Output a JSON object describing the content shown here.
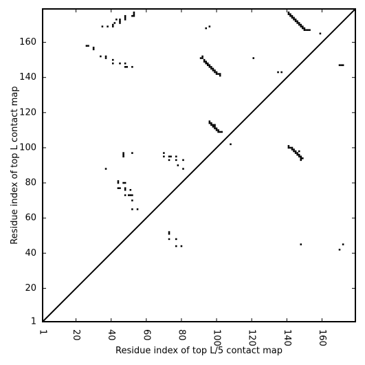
{
  "chart_data": {
    "type": "heatmap",
    "title": "",
    "xlabel": "Residue index of top L/5 contact map",
    "ylabel": "Residue index of top L contact map",
    "xlim": [
      1,
      179
    ],
    "ylim": [
      1,
      179
    ],
    "x_ticks": [
      1,
      20,
      40,
      60,
      80,
      100,
      120,
      140,
      160
    ],
    "y_ticks": [
      1,
      20,
      40,
      60,
      80,
      100,
      120,
      140,
      160
    ],
    "x_tick_labels": [
      "1",
      "20",
      "40",
      "60",
      "80",
      "100",
      "120",
      "140",
      "160"
    ],
    "y_tick_labels": [
      "1",
      "20",
      "40",
      "60",
      "80",
      "100",
      "120",
      "140",
      "160"
    ],
    "x_tick_rotation_deg": 90,
    "grid": false,
    "legend": "none",
    "diagonal_line": true,
    "cell_color": "#000000",
    "background_color": "#ffffff",
    "upper_triangle_contacts": [
      [
        26,
        158
      ],
      [
        27,
        158
      ],
      [
        30,
        157
      ],
      [
        30,
        156
      ],
      [
        34,
        152
      ],
      [
        35,
        169
      ],
      [
        37,
        152
      ],
      [
        37,
        151
      ],
      [
        38,
        169
      ],
      [
        41,
        170
      ],
      [
        41,
        169
      ],
      [
        41,
        150
      ],
      [
        41,
        148
      ],
      [
        42,
        171
      ],
      [
        43,
        173
      ],
      [
        45,
        173
      ],
      [
        45,
        172
      ],
      [
        45,
        171
      ],
      [
        45,
        148
      ],
      [
        48,
        175
      ],
      [
        48,
        174
      ],
      [
        48,
        173
      ],
      [
        48,
        148
      ],
      [
        48,
        146
      ],
      [
        49,
        146
      ],
      [
        52,
        175
      ],
      [
        52,
        146
      ],
      [
        53,
        177
      ],
      [
        53,
        176
      ],
      [
        53,
        175
      ],
      [
        94,
        168
      ],
      [
        96,
        169
      ],
      [
        121,
        151
      ],
      [
        135,
        143
      ],
      [
        137,
        143
      ],
      [
        141,
        177
      ],
      [
        141,
        176
      ],
      [
        142,
        176
      ],
      [
        142,
        175
      ],
      [
        143,
        175
      ],
      [
        143,
        174
      ],
      [
        144,
        174
      ],
      [
        144,
        173
      ],
      [
        145,
        173
      ],
      [
        145,
        172
      ],
      [
        146,
        172
      ],
      [
        146,
        171
      ],
      [
        147,
        171
      ],
      [
        147,
        170
      ],
      [
        148,
        170
      ],
      [
        148,
        169
      ],
      [
        149,
        169
      ],
      [
        149,
        168
      ],
      [
        150,
        168
      ],
      [
        150,
        167
      ],
      [
        151,
        167
      ],
      [
        152,
        167
      ],
      [
        153,
        167
      ],
      [
        159,
        165
      ]
    ],
    "lower_triangle_contacts": [
      [
        37,
        88
      ],
      [
        44,
        81
      ],
      [
        44,
        80
      ],
      [
        44,
        77
      ],
      [
        45,
        77
      ],
      [
        47,
        97
      ],
      [
        47,
        96
      ],
      [
        47,
        95
      ],
      [
        47,
        80
      ],
      [
        48,
        80
      ],
      [
        48,
        77
      ],
      [
        48,
        76
      ],
      [
        48,
        73
      ],
      [
        50,
        73
      ],
      [
        51,
        76
      ],
      [
        51,
        73
      ],
      [
        52,
        73
      ],
      [
        52,
        97
      ],
      [
        52,
        70
      ],
      [
        52,
        65
      ],
      [
        55,
        65
      ],
      [
        70,
        97
      ],
      [
        70,
        95
      ],
      [
        73,
        95
      ],
      [
        74,
        95
      ],
      [
        73,
        93
      ],
      [
        73,
        52
      ],
      [
        73,
        51
      ],
      [
        73,
        48
      ],
      [
        77,
        95
      ],
      [
        77,
        93
      ],
      [
        77,
        48
      ],
      [
        77,
        44
      ],
      [
        78,
        90
      ],
      [
        80,
        44
      ],
      [
        81,
        93
      ],
      [
        81,
        88
      ],
      [
        91,
        151
      ],
      [
        92,
        152
      ],
      [
        92,
        151
      ],
      [
        93,
        150
      ],
      [
        93,
        149
      ],
      [
        94,
        149
      ],
      [
        94,
        148
      ],
      [
        95,
        148
      ],
      [
        95,
        147
      ],
      [
        96,
        147
      ],
      [
        96,
        146
      ],
      [
        97,
        146
      ],
      [
        97,
        145
      ],
      [
        98,
        145
      ],
      [
        98,
        144
      ],
      [
        99,
        144
      ],
      [
        99,
        143
      ],
      [
        100,
        143
      ],
      [
        100,
        142
      ],
      [
        101,
        142
      ],
      [
        102,
        142
      ],
      [
        102,
        141
      ],
      [
        96,
        115
      ],
      [
        96,
        114
      ],
      [
        97,
        114
      ],
      [
        97,
        113
      ],
      [
        98,
        113
      ],
      [
        98,
        112
      ],
      [
        99,
        113
      ],
      [
        99,
        112
      ],
      [
        99,
        111
      ],
      [
        100,
        111
      ],
      [
        100,
        110
      ],
      [
        101,
        110
      ],
      [
        101,
        109
      ],
      [
        102,
        109
      ],
      [
        103,
        109
      ],
      [
        108,
        102
      ],
      [
        141,
        101
      ],
      [
        141,
        100
      ],
      [
        142,
        100
      ],
      [
        143,
        100
      ],
      [
        143,
        99
      ],
      [
        144,
        99
      ],
      [
        144,
        98
      ],
      [
        145,
        98
      ],
      [
        145,
        97
      ],
      [
        146,
        97
      ],
      [
        146,
        96
      ],
      [
        147,
        96
      ],
      [
        147,
        95
      ],
      [
        147,
        98
      ],
      [
        148,
        95
      ],
      [
        148,
        94
      ],
      [
        148,
        93
      ],
      [
        149,
        94
      ],
      [
        148,
        45
      ],
      [
        170,
        147
      ],
      [
        171,
        147
      ],
      [
        172,
        147
      ],
      [
        170,
        42
      ],
      [
        172,
        45
      ]
    ]
  }
}
